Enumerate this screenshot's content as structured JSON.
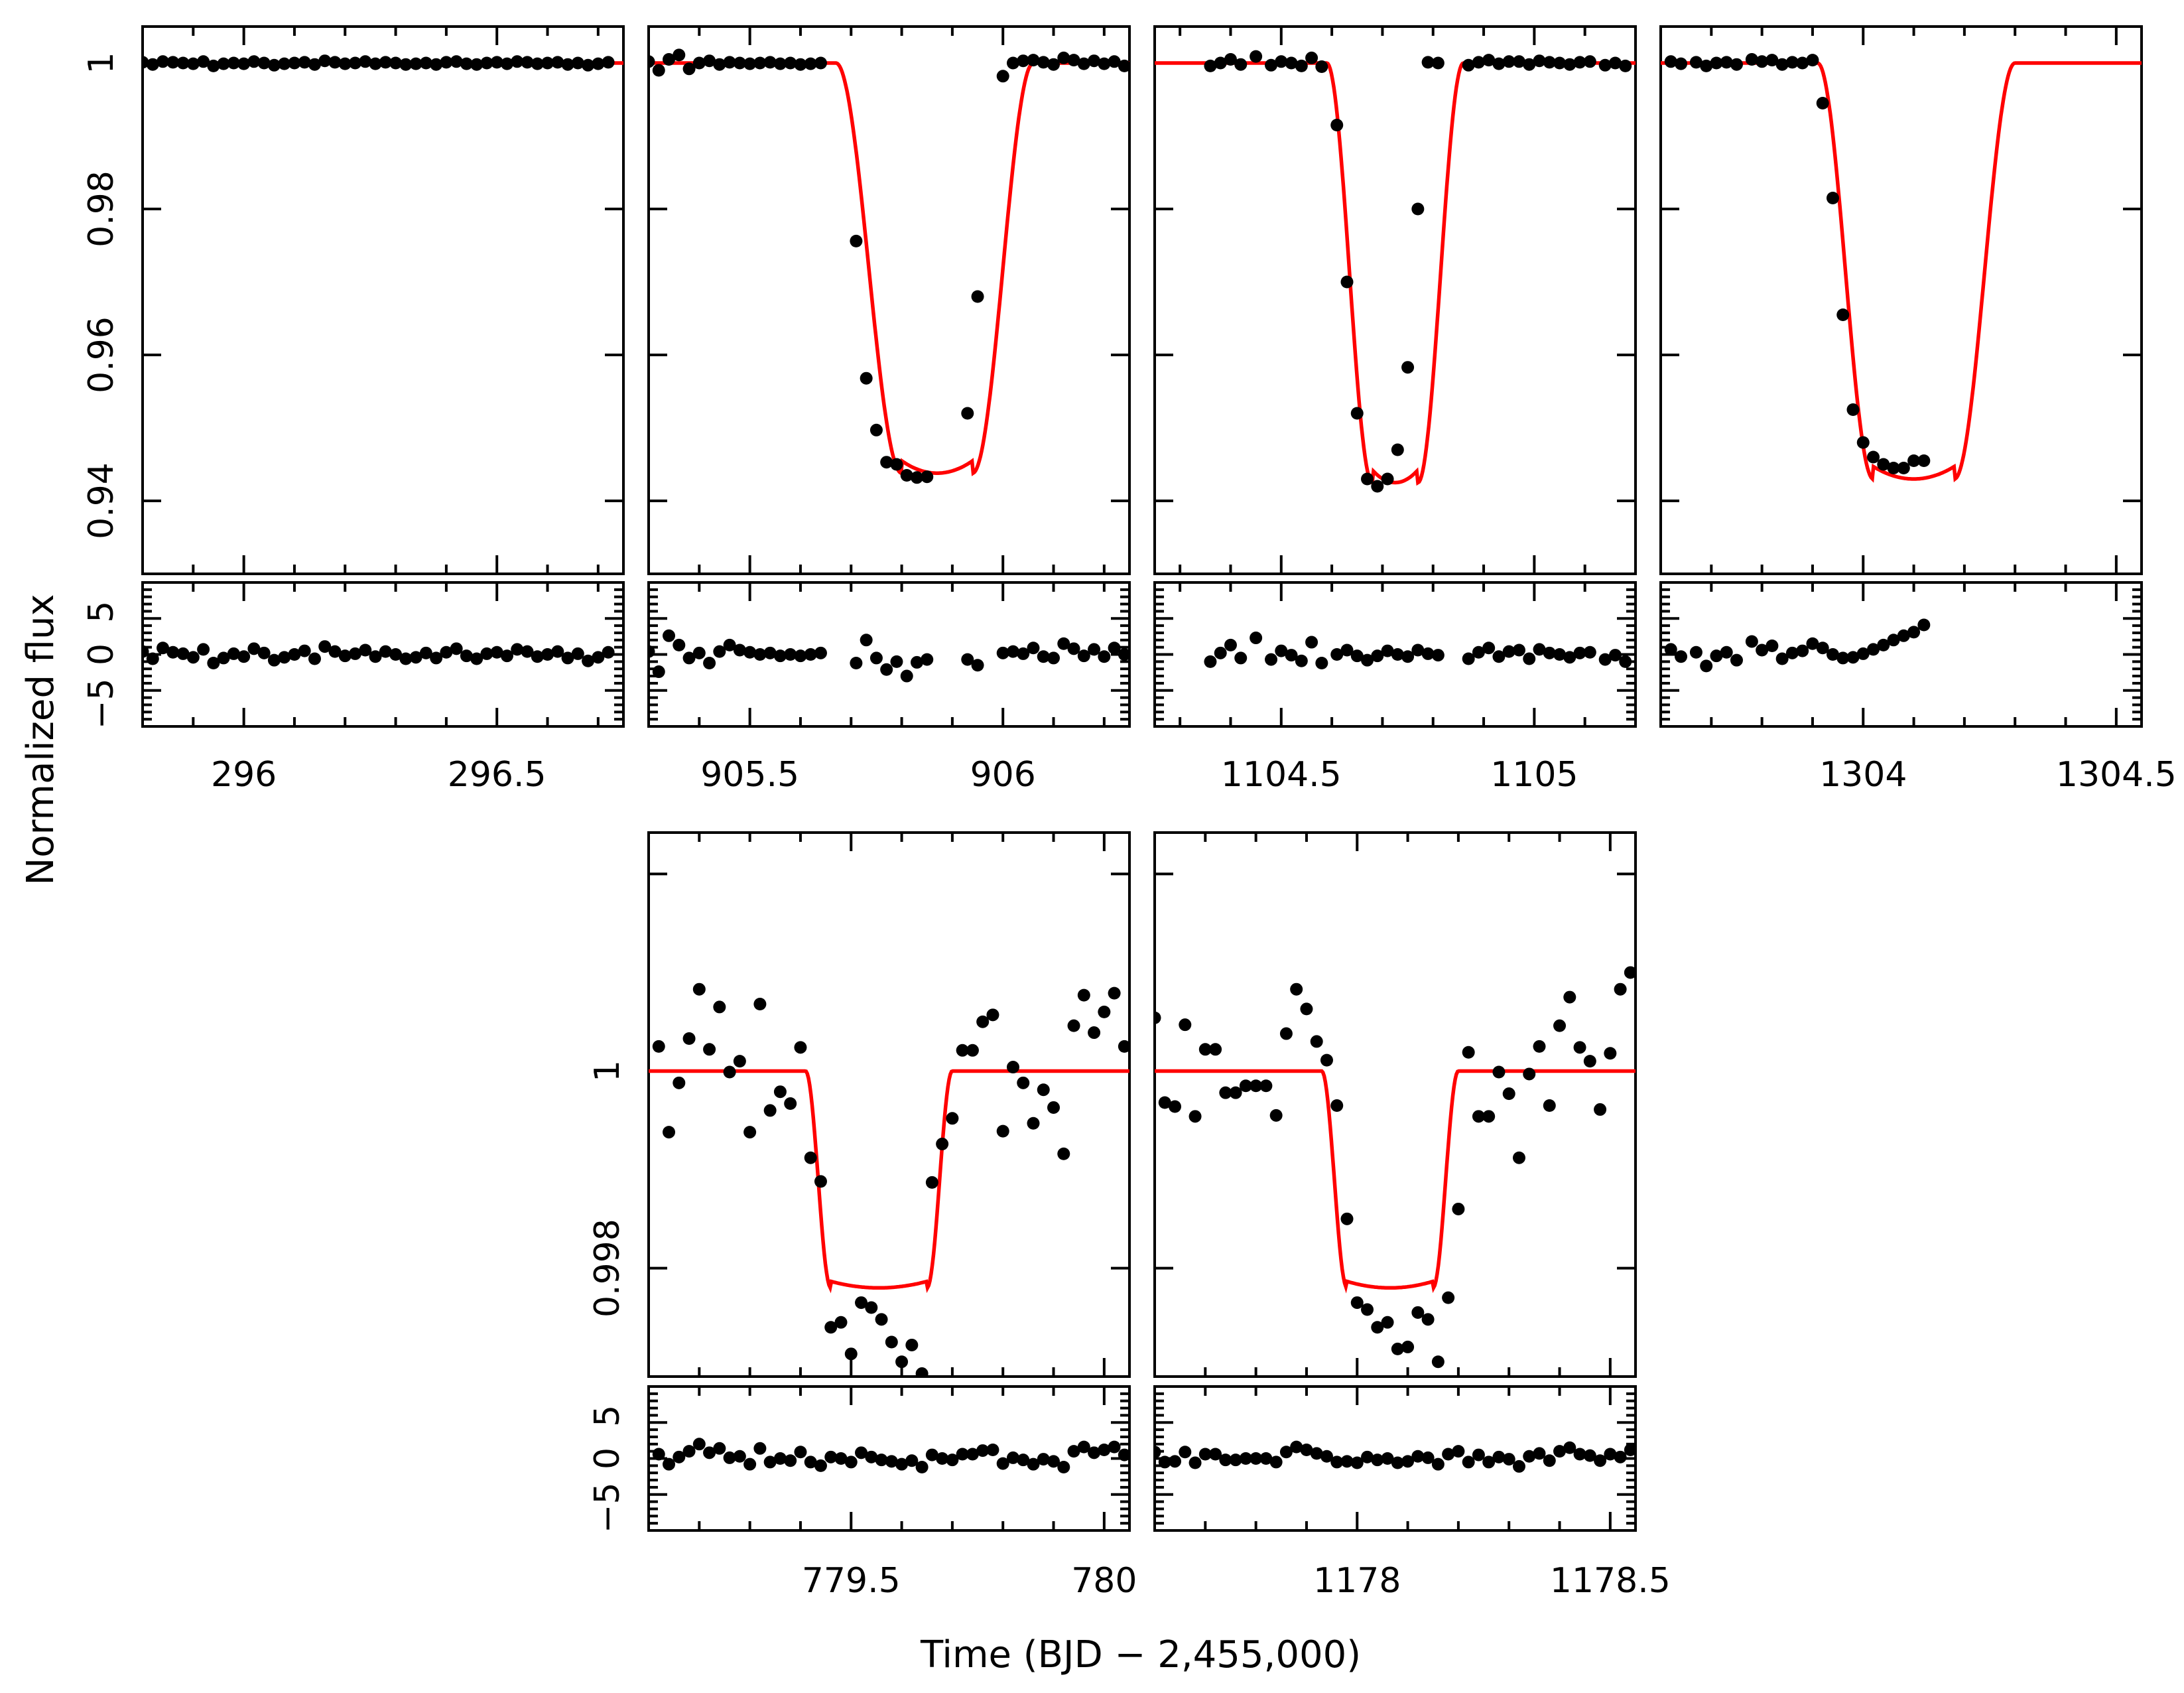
{
  "figure": {
    "ylabel": "Normalized flux",
    "xlabel": "Time (BJD − 2,455,000)"
  },
  "colors": {
    "model": "#ff0000",
    "points": "#000000",
    "axes": "#000000"
  },
  "chart_data": [
    {
      "type": "scatter",
      "panel": "top-1",
      "xlim": [
        295.8,
        296.75
      ],
      "ylim": [
        0.93,
        1.005
      ],
      "xticks": [
        296,
        296.5
      ],
      "xtick_labels": [
        "296",
        "296.5"
      ],
      "yticks": [
        0.94,
        0.96,
        0.98,
        1
      ],
      "ytick_labels": [
        "0.94",
        "0.96",
        "0.98",
        "1"
      ],
      "resid_ylim": [
        -10,
        10
      ],
      "resid_yticks": [
        -5,
        0,
        5
      ],
      "resid_ytick_labels": [
        "−5",
        "0",
        "5"
      ],
      "model": {
        "t0": 0,
        "depth": 0,
        "t_ingress_start": 0,
        "t_ingress_end": 0,
        "t_egress_start": 0,
        "t_egress_end": 0
      },
      "flux_x": [
        295.8,
        295.82,
        295.84,
        295.86,
        295.88,
        295.9,
        295.92,
        295.94,
        295.96,
        295.98,
        296.0,
        296.02,
        296.04,
        296.06,
        296.08,
        296.1,
        296.12,
        296.14,
        296.16,
        296.18,
        296.2,
        296.22,
        296.24,
        296.26,
        296.28,
        296.3,
        296.32,
        296.34,
        296.36,
        296.38,
        296.4,
        296.42,
        296.44,
        296.46,
        296.48,
        296.5,
        296.52,
        296.54,
        296.56,
        296.58,
        296.6,
        296.62,
        296.64,
        296.66,
        296.68,
        296.7,
        296.72
      ],
      "flux_y": [
        1.0001,
        0.9998,
        1.0002,
        1.0001,
        1.0,
        0.9999,
        1.0002,
        0.9996,
        0.9999,
        1.0,
        0.9999,
        1.0002,
        1.0,
        0.9997,
        0.9999,
        1.0,
        1.0001,
        0.9998,
        1.0003,
        1.0001,
        0.9999,
        1.0,
        1.0002,
        0.9999,
        1.0001,
        1.0,
        0.9998,
        0.9999,
        1.0,
        0.9998,
        1.0001,
        1.0002,
        0.9999,
        0.9998,
        1.0,
        1.0001,
        0.9999,
        1.0002,
        1.0001,
        0.9999,
        1.0,
        1.0001,
        0.9998,
        1.0,
        0.9997,
        0.9999,
        1.0001
      ],
      "resid_y": [
        0.4,
        -0.6,
        0.9,
        0.3,
        0.1,
        -0.4,
        0.7,
        -1.2,
        -0.5,
        0.1,
        -0.3,
        0.8,
        0.2,
        -0.8,
        -0.4,
        0.0,
        0.5,
        -0.6,
        1.1,
        0.4,
        -0.2,
        0.1,
        0.6,
        -0.3,
        0.4,
        0.0,
        -0.6,
        -0.4,
        0.2,
        -0.5,
        0.3,
        0.8,
        -0.2,
        -0.6,
        0.1,
        0.3,
        -0.2,
        0.7,
        0.4,
        -0.3,
        0.0,
        0.4,
        -0.5,
        0.1,
        -0.9,
        -0.4,
        0.3
      ]
    },
    {
      "type": "scatter",
      "panel": "top-2",
      "xlim": [
        905.3,
        906.25
      ],
      "ylim": [
        0.93,
        1.005
      ],
      "xticks": [
        905.5,
        906
      ],
      "xtick_labels": [
        "905.5",
        "906"
      ],
      "yticks": [
        0.94,
        0.96,
        0.98,
        1
      ],
      "ytick_labels": [
        "0.94",
        "0.96",
        "0.98",
        "1"
      ],
      "resid_ylim": [
        -10,
        10
      ],
      "resid_yticks": [
        -5,
        0,
        5
      ],
      "resid_ytick_labels": [
        "−5",
        "0",
        "5"
      ],
      "model": {
        "t0": 905.873,
        "depth": 0.0562,
        "t_ingress_start": 905.67,
        "t_ingress_end": 905.8,
        "t_egress_start": 905.94,
        "t_egress_end": 906.06
      },
      "flux_x": [
        905.3,
        905.32,
        905.34,
        905.36,
        905.38,
        905.4,
        905.42,
        905.44,
        905.46,
        905.48,
        905.5,
        905.52,
        905.54,
        905.56,
        905.58,
        905.6,
        905.62,
        905.64,
        905.71,
        905.73,
        905.75,
        905.77,
        905.79,
        905.81,
        905.83,
        905.85,
        905.93,
        905.95,
        906.0,
        906.02,
        906.04,
        906.06,
        906.08,
        906.1,
        906.12,
        906.14,
        906.16,
        906.18,
        906.2,
        906.22,
        906.24
      ],
      "flux_y": [
        1.0002,
        0.999,
        1.0005,
        1.0011,
        0.9992,
        1.0,
        1.0003,
        0.9998,
        1.0001,
        1.0,
        0.9999,
        1.0,
        1.0001,
        0.9999,
        1.0,
        0.9998,
        0.9999,
        1.0,
        0.9756,
        0.9568,
        0.9497,
        0.9453,
        0.945,
        0.9435,
        0.9432,
        0.9433,
        0.952,
        0.968,
        0.9982,
        1.0,
        1.0003,
        1.0004,
        1.0001,
        0.9998,
        1.0007,
        1.0004,
        0.9999,
        1.0003,
        0.9999,
        1.0002,
        0.9996
      ],
      "resid_y": [
        0.4,
        -2.4,
        2.6,
        1.3,
        -0.5,
        0.2,
        -1.2,
        0.4,
        1.3,
        0.6,
        0.3,
        0.0,
        0.2,
        -0.2,
        0.0,
        -0.2,
        0.0,
        0.2,
        -1.2,
        2.0,
        -0.5,
        -2.1,
        -1.0,
        -3.0,
        -1.1,
        -0.7,
        -0.7,
        -1.5,
        0.2,
        0.4,
        0.1,
        0.9,
        -0.3,
        -0.5,
        1.5,
        0.8,
        -0.2,
        0.7,
        -0.3,
        0.9,
        0.0
      ]
    },
    {
      "type": "scatter",
      "panel": "top-3",
      "xlim": [
        1104.25,
        1105.2
      ],
      "ylim": [
        0.93,
        1.005
      ],
      "xticks": [
        1104.5,
        1105
      ],
      "xtick_labels": [
        "1104.5",
        "1105"
      ],
      "yticks": [
        0.94,
        0.96,
        0.98,
        1
      ],
      "ytick_labels": [
        "0.94",
        "0.96",
        "0.98",
        "1"
      ],
      "resid_ylim": [
        -10,
        10
      ],
      "resid_yticks": [
        -5,
        0,
        5
      ],
      "resid_ytick_labels": [
        "−5",
        "0",
        "5"
      ],
      "model": {
        "t0": 1104.72,
        "depth": 0.0575,
        "t_ingress_start": 1104.59,
        "t_ingress_end": 1104.68,
        "t_egress_start": 1104.77,
        "t_egress_end": 1104.86
      },
      "flux_x": [
        1104.36,
        1104.38,
        1104.4,
        1104.42,
        1104.45,
        1104.48,
        1104.5,
        1104.52,
        1104.54,
        1104.56,
        1104.58,
        1104.61,
        1104.63,
        1104.65,
        1104.67,
        1104.69,
        1104.71,
        1104.73,
        1104.75,
        1104.77,
        1104.79,
        1104.81,
        1104.87,
        1104.89,
        1104.91,
        1104.93,
        1104.95,
        1104.97,
        1104.99,
        1105.01,
        1105.03,
        1105.05,
        1105.07,
        1105.09,
        1105.11,
        1105.14,
        1105.16,
        1105.18
      ],
      "flux_y": [
        0.9996,
        1.0,
        1.0005,
        0.9998,
        1.0009,
        0.9997,
        1.0002,
        1.0,
        0.9996,
        1.0007,
        0.9995,
        0.9915,
        0.97,
        0.952,
        0.943,
        0.942,
        0.943,
        0.947,
        0.9583,
        0.98,
        1.0001,
        1.0,
        0.9997,
        1.0001,
        1.0004,
        0.9999,
        1.0002,
        1.0002,
        0.9998,
        1.0003,
        1.0001,
        1.0,
        0.9998,
        1.0001,
        1.0002,
        0.9997,
        1.0,
        0.9996
      ],
      "resid_y": [
        -1.0,
        0.2,
        1.3,
        -0.5,
        2.3,
        -0.7,
        0.5,
        -0.1,
        -0.9,
        1.7,
        -1.2,
        0.0,
        0.6,
        -0.2,
        -0.8,
        -0.2,
        0.5,
        0.0,
        -0.3,
        0.6,
        0.1,
        -0.1,
        -0.6,
        0.3,
        0.9,
        -0.3,
        0.4,
        0.6,
        -0.6,
        0.7,
        0.2,
        0.0,
        -0.4,
        0.2,
        0.3,
        -0.7,
        -0.1,
        -1.0
      ]
    },
    {
      "type": "scatter",
      "panel": "top-4",
      "xlim": [
        1303.6,
        1304.55
      ],
      "ylim": [
        0.93,
        1.005
      ],
      "xticks": [
        1304,
        1304.5
      ],
      "xtick_labels": [
        "1304",
        "1304.5"
      ],
      "yticks": [
        0.94,
        0.96,
        0.98,
        1
      ],
      "ytick_labels": [
        "0.94",
        "0.96",
        "0.98",
        "1"
      ],
      "resid_ylim": [
        -10,
        10
      ],
      "resid_yticks": [
        -5,
        0,
        5
      ],
      "resid_ytick_labels": [
        "−5",
        "0",
        "5"
      ],
      "model": {
        "t0": 1304.1,
        "depth": 0.057,
        "t_ingress_start": 1303.91,
        "t_ingress_end": 1304.02,
        "t_egress_start": 1304.18,
        "t_egress_end": 1304.3
      },
      "flux_x": [
        1303.62,
        1303.64,
        1303.67,
        1303.69,
        1303.71,
        1303.73,
        1303.75,
        1303.78,
        1303.8,
        1303.82,
        1303.84,
        1303.86,
        1303.88,
        1303.9,
        1303.92,
        1303.94,
        1303.96,
        1303.98,
        1304.0,
        1304.02,
        1304.04,
        1304.06,
        1304.08,
        1304.1,
        1304.12
      ],
      "flux_y": [
        1.0002,
        0.9999,
        1.0001,
        0.9996,
        1.0,
        1.0001,
        0.9998,
        1.0005,
        1.0002,
        1.0004,
        0.9998,
        1.0001,
        1.0,
        1.0004,
        0.9945,
        0.9815,
        0.9655,
        0.9525,
        0.948,
        0.946,
        0.945,
        0.9445,
        0.9445,
        0.9455,
        0.9455
      ],
      "resid_y": [
        0.7,
        -0.3,
        0.3,
        -1.6,
        -0.2,
        0.3,
        -0.8,
        1.8,
        0.6,
        1.2,
        -0.6,
        0.2,
        0.5,
        1.5,
        0.9,
        0.0,
        -0.5,
        -0.4,
        0.1,
        0.7,
        1.3,
        2.0,
        2.6,
        3.1,
        4.1
      ]
    },
    {
      "type": "scatter",
      "panel": "bottom-1",
      "xlim": [
        779.1,
        780.05
      ],
      "ylim": [
        0.9969,
        1.00242
      ],
      "xticks": [
        779.5,
        780
      ],
      "xtick_labels": [
        "779.5",
        "780"
      ],
      "yticks": [
        0.998,
        1
      ],
      "ytick_labels": [
        "0.998",
        "1"
      ],
      "resid_ylim": [
        -10,
        10
      ],
      "resid_yticks": [
        -5,
        0,
        5
      ],
      "resid_ytick_labels": [
        "−5",
        "0",
        "5"
      ],
      "model": {
        "t0": 779.555,
        "depth": 0.0022,
        "t_ingress_start": 779.41,
        "t_ingress_end": 779.46,
        "t_egress_start": 779.65,
        "t_egress_end": 779.7
      },
      "flux_x": [
        779.12,
        779.14,
        779.16,
        779.18,
        779.2,
        779.22,
        779.24,
        779.26,
        779.28,
        779.3,
        779.32,
        779.34,
        779.36,
        779.38,
        779.4,
        779.42,
        779.44,
        779.46,
        779.48,
        779.5,
        779.52,
        779.54,
        779.56,
        779.58,
        779.6,
        779.62,
        779.64,
        779.66,
        779.68,
        779.7,
        779.72,
        779.74,
        779.76,
        779.78,
        779.8,
        779.82,
        779.84,
        779.86,
        779.88,
        779.9,
        779.92,
        779.94,
        779.96,
        779.98,
        780.0,
        780.02,
        780.04
      ],
      "flux_y": [
        1.00025,
        0.99938,
        0.99988,
        1.00033,
        1.00083,
        1.00022,
        1.00065,
        0.99999,
        1.0001,
        0.99938,
        1.00068,
        0.9996,
        0.99979,
        0.99967,
        1.00024,
        0.99912,
        0.99888,
        0.9974,
        0.99745,
        0.99713,
        0.99765,
        0.9976,
        0.99748,
        0.99725,
        0.99705,
        0.99722,
        0.99693,
        0.99887,
        0.99926,
        0.99952,
        1.00021,
        1.00021,
        1.0005,
        1.00057,
        0.99939,
        1.00004,
        0.99988,
        0.99947,
        0.99981,
        0.99963,
        0.99916,
        1.00046,
        1.00077,
        1.00039,
        1.0006,
        1.00079,
        1.00025
      ],
      "resid_y": [
        0.6,
        -0.8,
        0.2,
        1.0,
        2.0,
        0.8,
        1.4,
        0.1,
        0.3,
        -0.8,
        1.4,
        -0.5,
        0.0,
        -0.3,
        0.9,
        -0.5,
        -1.0,
        0.2,
        0.0,
        -0.5,
        0.8,
        0.2,
        -0.2,
        -0.4,
        -0.8,
        -0.3,
        -1.2,
        0.5,
        0.0,
        -0.2,
        0.6,
        0.6,
        1.1,
        1.2,
        -0.7,
        0.1,
        -0.2,
        -0.8,
        -0.1,
        -0.4,
        -1.2,
        1.0,
        1.6,
        0.8,
        1.2,
        1.6,
        0.5
      ]
    },
    {
      "type": "scatter",
      "panel": "bottom-2",
      "xlim": [
        1177.6,
        1178.55
      ],
      "ylim": [
        0.9969,
        1.00242
      ],
      "xticks": [
        1178,
        1178.5
      ],
      "xtick_labels": [
        "1178",
        "1178.5"
      ],
      "yticks": [
        0.998,
        1
      ],
      "ytick_labels": [
        "0.998",
        "1"
      ],
      "resid_ylim": [
        -10,
        10
      ],
      "resid_yticks": [
        -5,
        0,
        5
      ],
      "resid_ytick_labels": [
        "−5",
        "0",
        "5"
      ],
      "model": {
        "t0": 1178.15,
        "depth": 0.0022,
        "t_ingress_start": 1177.93,
        "t_ingress_end": 1177.98,
        "t_egress_start": 1178.15,
        "t_egress_end": 1178.2
      },
      "flux_x": [
        1177.6,
        1177.62,
        1177.64,
        1177.66,
        1177.68,
        1177.7,
        1177.72,
        1177.74,
        1177.76,
        1177.78,
        1177.8,
        1177.82,
        1177.84,
        1177.86,
        1177.88,
        1177.9,
        1177.92,
        1177.94,
        1177.96,
        1177.98,
        1178.0,
        1178.02,
        1178.04,
        1178.06,
        1178.08,
        1178.1,
        1178.12,
        1178.14,
        1178.16,
        1178.18,
        1178.2,
        1178.22,
        1178.24,
        1178.26,
        1178.28,
        1178.3,
        1178.32,
        1178.34,
        1178.36,
        1178.38,
        1178.4,
        1178.42,
        1178.44,
        1178.46,
        1178.48,
        1178.5,
        1178.52,
        1178.54
      ],
      "flux_y": [
        1.00054,
        0.99968,
        0.99964,
        1.00047,
        0.99954,
        1.00022,
        1.00022,
        0.99978,
        0.99978,
        0.99985,
        0.99985,
        0.99985,
        0.99955,
        1.00038,
        1.00083,
        1.00063,
        1.0003,
        1.00011,
        0.99965,
        0.9985,
        0.99765,
        0.99758,
        0.9974,
        0.99745,
        0.99718,
        0.9972,
        0.99755,
        0.99748,
        0.99705,
        0.9977,
        0.9986,
        1.00019,
        0.99954,
        0.99954,
        0.99999,
        0.99977,
        0.99912,
        0.99997,
        1.00025,
        0.99965,
        1.00046,
        1.00075,
        1.00024,
        1.0001,
        0.99961,
        1.00018,
        1.00083,
        1.001
      ],
      "resid_y": [
        0.9,
        -0.5,
        -0.4,
        0.9,
        -0.6,
        0.6,
        0.6,
        -0.2,
        -0.2,
        0.0,
        0.0,
        0.0,
        -0.5,
        0.9,
        1.6,
        1.2,
        0.7,
        0.3,
        -0.5,
        -0.4,
        -0.6,
        0.2,
        -0.2,
        0.0,
        -0.6,
        -0.4,
        0.3,
        0.1,
        -0.8,
        0.6,
        1.0,
        -0.5,
        0.5,
        -0.5,
        0.2,
        -0.1,
        -1.1,
        0.3,
        0.7,
        -0.3,
        1.0,
        1.5,
        0.6,
        0.4,
        -0.3,
        0.6,
        0.2,
        1.2
      ]
    }
  ]
}
